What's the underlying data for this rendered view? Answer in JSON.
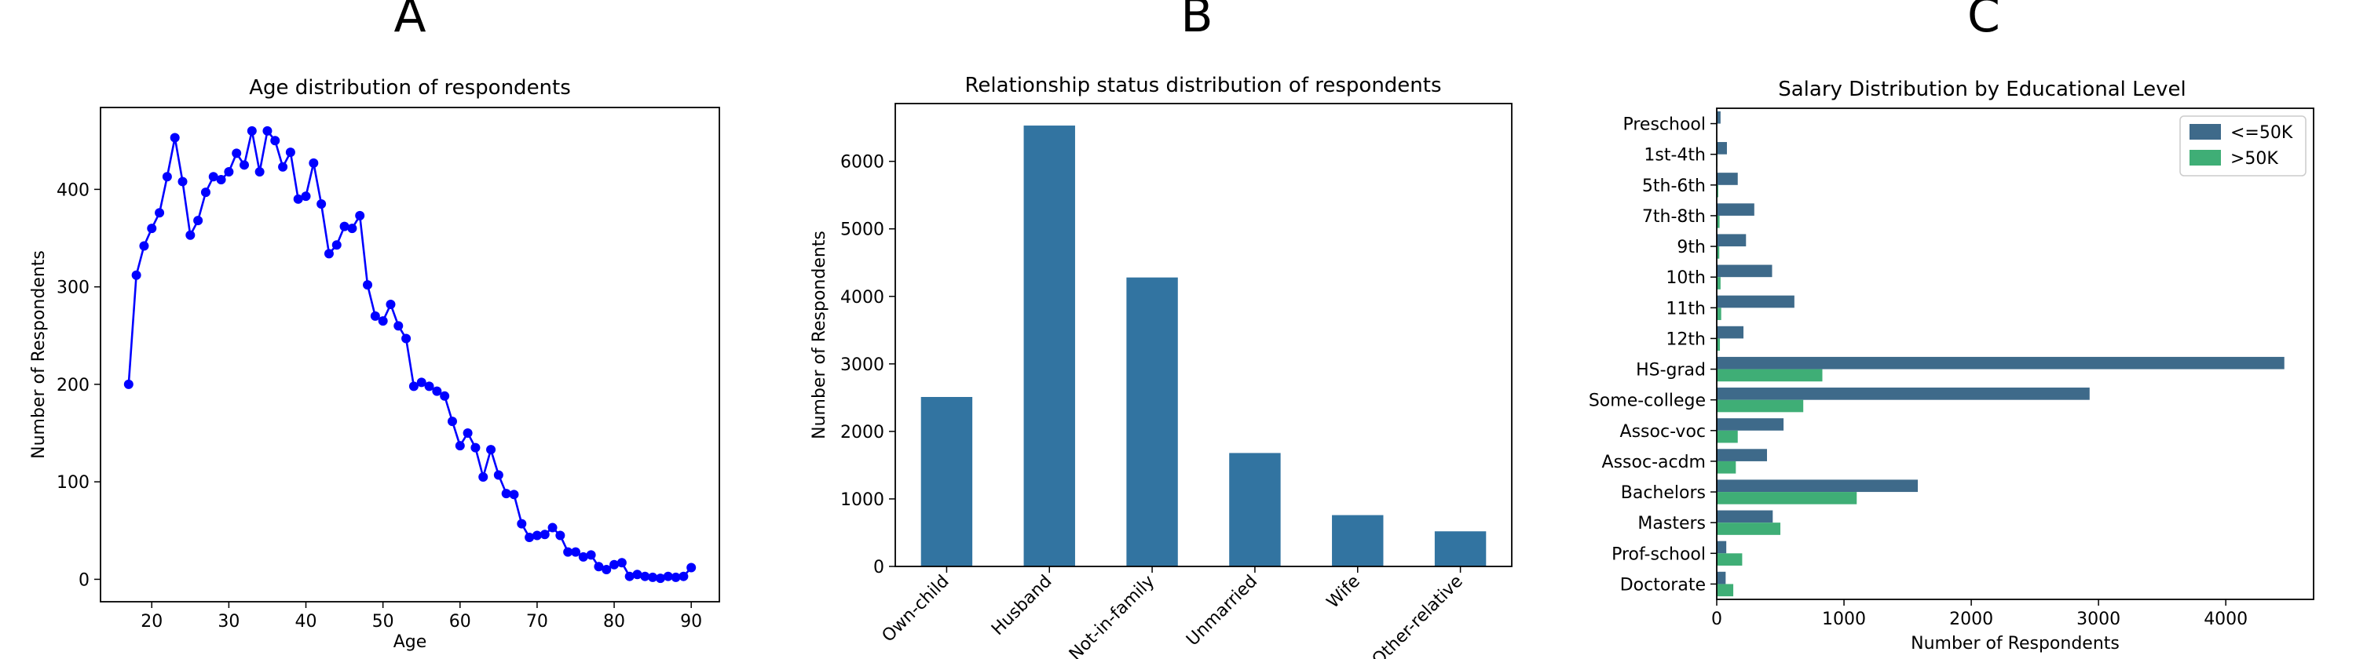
{
  "panels": {
    "a": {
      "letter": "A"
    },
    "b": {
      "letter": "B"
    },
    "c": {
      "letter": "C"
    }
  },
  "chart_data": [
    {
      "type": "line",
      "title": "Age distribution of respondents",
      "xlabel": "Age",
      "ylabel": "Number of Respondents",
      "xlim": [
        13.35,
        93.65
      ],
      "ylim": [
        -23,
        484
      ],
      "xticks": [
        20,
        30,
        40,
        50,
        60,
        70,
        80,
        90
      ],
      "yticks": [
        0,
        100,
        200,
        300,
        400
      ],
      "grid": false,
      "color": "#0000ff",
      "series": [
        {
          "x": [
            17,
            18,
            19,
            20,
            21,
            22,
            23,
            24,
            25,
            26,
            27,
            28,
            29,
            30,
            31,
            32,
            33,
            34,
            35,
            36,
            37,
            38,
            39,
            40,
            41,
            42,
            43,
            44,
            45,
            46,
            47,
            48,
            49,
            50,
            51,
            52,
            53,
            54,
            55,
            56,
            57,
            58,
            59,
            60,
            61,
            62,
            63,
            64,
            65,
            66,
            67,
            68,
            69,
            70,
            71,
            72,
            73,
            74,
            75,
            76,
            77,
            78,
            79,
            80,
            81,
            82,
            83,
            84,
            85,
            86,
            87,
            88,
            89,
            90
          ],
          "y": [
            200,
            312,
            342,
            360,
            376,
            413,
            453,
            408,
            353,
            368,
            397,
            413,
            410,
            418,
            437,
            425,
            460,
            418,
            460,
            450,
            423,
            438,
            390,
            393,
            427,
            385,
            334,
            343,
            362,
            360,
            373,
            302,
            270,
            265,
            282,
            260,
            247,
            198,
            202,
            198,
            193,
            188,
            162,
            137,
            150,
            135,
            105,
            133,
            107,
            88,
            87,
            57,
            43,
            45,
            46,
            53,
            45,
            28,
            28,
            23,
            25,
            13,
            10,
            15,
            17,
            3,
            5,
            3,
            2,
            1,
            3,
            2,
            3,
            12
          ]
        }
      ]
    },
    {
      "type": "bar",
      "title": "Relationship status distribution of respondents",
      "xlabel": "",
      "ylabel": "Number of Respondents",
      "categories": [
        "Own-child",
        "Husband",
        "Not-in-family",
        "Unmarried",
        "Wife",
        "Other-relative"
      ],
      "values": [
        2510,
        6530,
        4280,
        1680,
        760,
        520
      ],
      "ylim": [
        0,
        6856
      ],
      "yticks": [
        0,
        1000,
        2000,
        3000,
        4000,
        5000,
        6000
      ],
      "grid": false,
      "color": "#3274a1"
    },
    {
      "type": "bar",
      "orientation": "horizontal",
      "title": "Salary Distribution by Educational Level",
      "xlabel": "Number of Respondents",
      "ylabel": "",
      "categories": [
        "Preschool",
        "1st-4th",
        "5th-6th",
        "7th-8th",
        "9th",
        "10th",
        "11th",
        "12th",
        "HS-grad",
        "Some-college",
        "Assoc-voc",
        "Assoc-acdm",
        "Bachelors",
        "Masters",
        "Prof-school",
        "Doctorate"
      ],
      "series": [
        {
          "name": "<=50K",
          "color": "#3e6a8a",
          "values": [
            30,
            80,
            165,
            295,
            230,
            435,
            610,
            210,
            4460,
            2930,
            525,
            395,
            1580,
            440,
            75,
            70
          ]
        },
        {
          "name": ">50K",
          "color": "#3fae76",
          "values": [
            0,
            5,
            12,
            22,
            20,
            30,
            35,
            25,
            830,
            680,
            165,
            150,
            1100,
            500,
            200,
            130
          ]
        }
      ],
      "xlim": [
        0,
        4690
      ],
      "xticks": [
        0,
        1000,
        2000,
        3000,
        4000
      ],
      "grid": false,
      "legend": "top-right"
    }
  ]
}
